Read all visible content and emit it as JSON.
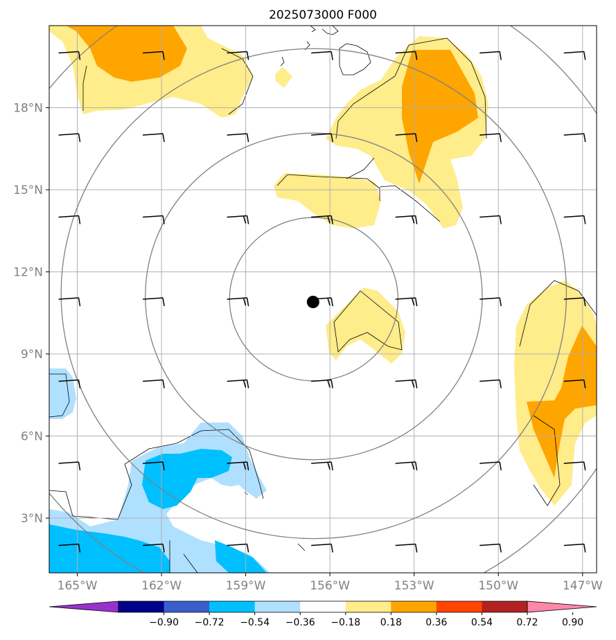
{
  "title": "2025073000 F000",
  "map": {
    "lon_range": [
      -166,
      -146.5
    ],
    "lat_range": [
      1,
      21
    ],
    "lon_ticks": [
      {
        "value": -165,
        "label": "165°W"
      },
      {
        "value": -162,
        "label": "162°W"
      },
      {
        "value": -159,
        "label": "159°W"
      },
      {
        "value": -156,
        "label": "156°W"
      },
      {
        "value": -153,
        "label": "153°W"
      },
      {
        "value": -150,
        "label": "150°W"
      },
      {
        "value": -147,
        "label": "147°W"
      }
    ],
    "lat_ticks": [
      {
        "value": 3,
        "label": "3°N"
      },
      {
        "value": 6,
        "label": "6°N"
      },
      {
        "value": 9,
        "label": "9°N"
      },
      {
        "value": 12,
        "label": "12°N"
      },
      {
        "value": 15,
        "label": "15°N"
      },
      {
        "value": 18,
        "label": "18°N"
      }
    ],
    "gridlines": true,
    "storm_center": {
      "lon": -156.6,
      "lat": 10.9
    },
    "range_rings_deg": [
      3,
      6,
      9,
      12
    ],
    "barb_lons": [
      -165,
      -162,
      -159,
      -156,
      -153,
      -150,
      -147
    ],
    "barb_lats": [
      2,
      5,
      8,
      11,
      14,
      17,
      20
    ]
  },
  "colorbar": {
    "colors": [
      "#9932cc",
      "#00008b",
      "#3a5fcd",
      "#00bfff",
      "#b0e0ff",
      "#ffffff",
      "#ffec8b",
      "#ffa500",
      "#ff4500",
      "#b22222",
      "#ff88aa"
    ],
    "tick_labels": [
      "−0.90",
      "−0.72",
      "−0.54",
      "−0.36",
      "−0.18",
      "0.18",
      "0.36",
      "0.54",
      "0.72",
      "0.90"
    ],
    "extend": "both"
  },
  "colors": {
    "neg_low": "#b0e0ff",
    "neg_mid": "#00bfff",
    "pos_low": "#ffec8b",
    "pos_mid": "#ffa500",
    "ring": "#808080",
    "grid": "#b0b0b0"
  }
}
